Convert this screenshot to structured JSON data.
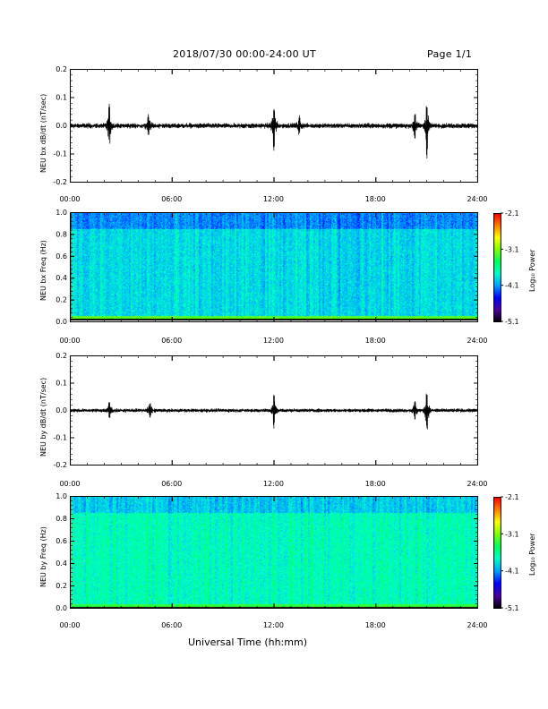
{
  "header": {
    "title": "2018/07/30  00:00-24:00 UT",
    "page": "Page 1/1"
  },
  "x_axis_title": "Universal Time (hh:mm)",
  "colorbar": {
    "label": "Log₁₀ Power",
    "ticks": [
      "-2.1",
      "-3.1",
      "-4.1",
      "-5.1"
    ],
    "range": [
      -5.1,
      -2.1
    ]
  },
  "colors": {
    "trace": "#000000",
    "colormap": [
      "#000000",
      "#5000a0",
      "#0000ff",
      "#00a0ff",
      "#00ffd0",
      "#00ff60",
      "#80ff00",
      "#ffff00",
      "#ff8000",
      "#ff0000"
    ]
  },
  "chart_data": [
    {
      "type": "line",
      "id": "bx-series",
      "ylabel": "NEU bx dB/dt (nT/sec)",
      "xlim": [
        0,
        24
      ],
      "ylim": [
        -0.2,
        0.2
      ],
      "x_ticks": [
        "00:00",
        "06:00",
        "12:00",
        "18:00",
        "24:00"
      ],
      "y_ticks": [
        "0.2",
        "0.1",
        "0.0",
        "-0.1",
        "-0.2"
      ],
      "series": [
        {
          "values_description_free": true,
          "baseline_amplitude": 0.008,
          "bursts": [
            {
              "x": 2.3,
              "peak": 0.045,
              "trough": -0.03
            },
            {
              "x": 4.6,
              "peak": 0.025,
              "trough": -0.022
            },
            {
              "x": 12.0,
              "peak": 0.035,
              "trough": -0.06
            },
            {
              "x": 13.5,
              "peak": 0.02,
              "trough": -0.015
            },
            {
              "x": 20.3,
              "peak": 0.03,
              "trough": -0.025
            },
            {
              "x": 21.0,
              "peak": 0.045,
              "trough": -0.075
            }
          ]
        }
      ]
    },
    {
      "type": "heatmap",
      "id": "bx-spectrogram",
      "ylabel": "NEU bx Freq (Hz)",
      "xlim": [
        0,
        24
      ],
      "ylim": [
        0.0,
        1.0
      ],
      "x_ticks": [
        "00:00",
        "06:00",
        "12:00",
        "18:00",
        "24:00"
      ],
      "y_ticks": [
        "1.0",
        "0.8",
        "0.6",
        "0.4",
        "0.2",
        "0.0"
      ],
      "zlim": [
        -5.1,
        -2.1
      ],
      "typical_log_power": -3.9,
      "low_freq_log_power": -3.2
    },
    {
      "type": "line",
      "id": "by-series",
      "ylabel": "NEU by dB/dt (nT/sec)",
      "xlim": [
        0,
        24
      ],
      "ylim": [
        -0.2,
        0.2
      ],
      "x_ticks": [
        "00:00",
        "06:00",
        "12:00",
        "18:00",
        "24:00"
      ],
      "y_ticks": [
        "0.2",
        "0.1",
        "0.0",
        "-0.1",
        "-0.2"
      ],
      "series": [
        {
          "baseline_amplitude": 0.006,
          "bursts": [
            {
              "x": 2.3,
              "peak": 0.02,
              "trough": -0.015
            },
            {
              "x": 4.7,
              "peak": 0.015,
              "trough": -0.018
            },
            {
              "x": 12.0,
              "peak": 0.03,
              "trough": -0.045
            },
            {
              "x": 20.3,
              "peak": 0.02,
              "trough": -0.02
            },
            {
              "x": 21.0,
              "peak": 0.045,
              "trough": -0.045
            }
          ]
        }
      ]
    },
    {
      "type": "heatmap",
      "id": "by-spectrogram",
      "ylabel": "NEU by Freq (Hz)",
      "xlim": [
        0,
        24
      ],
      "ylim": [
        0.0,
        1.0
      ],
      "x_ticks": [
        "00:00",
        "06:00",
        "12:00",
        "18:00",
        "24:00"
      ],
      "y_ticks": [
        "1.0",
        "0.8",
        "0.6",
        "0.4",
        "0.2",
        "0.0"
      ],
      "zlim": [
        -5.1,
        -2.1
      ],
      "typical_log_power": -3.7,
      "low_freq_log_power": -3.3
    }
  ]
}
